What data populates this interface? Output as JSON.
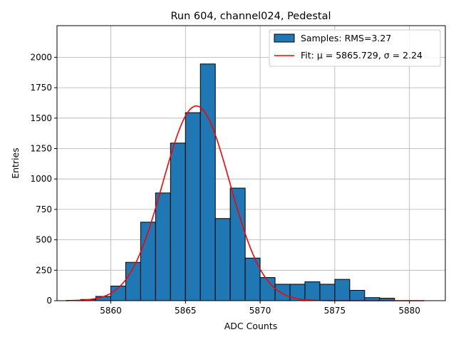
{
  "chart_data": {
    "type": "bar",
    "title": "Run 604, channel024, Pedestal",
    "xlabel": "ADC Counts",
    "ylabel": "Entries",
    "xlim": [
      5856.4,
      5882.4
    ],
    "ylim": [
      0,
      2260
    ],
    "xticks": [
      5860,
      5865,
      5870,
      5875,
      5880
    ],
    "yticks": [
      0,
      250,
      500,
      750,
      1000,
      1250,
      1500,
      1750,
      2000
    ],
    "grid": true,
    "legend_position": "top-right",
    "bins": {
      "left_edges": [
        5858,
        5859,
        5860,
        5861,
        5862,
        5863,
        5864,
        5865,
        5866,
        5867,
        5868,
        5869,
        5870,
        5871,
        5872,
        5873,
        5874,
        5875,
        5876,
        5877,
        5878
      ],
      "width": 1,
      "values": [
        10,
        35,
        120,
        315,
        645,
        885,
        1295,
        1545,
        1945,
        675,
        925,
        350,
        190,
        135,
        135,
        155,
        135,
        175,
        85,
        25,
        20
      ]
    },
    "series": [
      {
        "name": "Samples: RMS=3.27",
        "kind": "histogram",
        "color": "#1f77b4"
      },
      {
        "name": "Fit: μ = 5865.729, σ = 2.24",
        "kind": "line",
        "color": "#ff0000",
        "fit": {
          "mu": 5865.729,
          "sigma": 2.24,
          "amplitude": 1600,
          "x_range": [
            5857,
            5881
          ]
        }
      }
    ]
  }
}
